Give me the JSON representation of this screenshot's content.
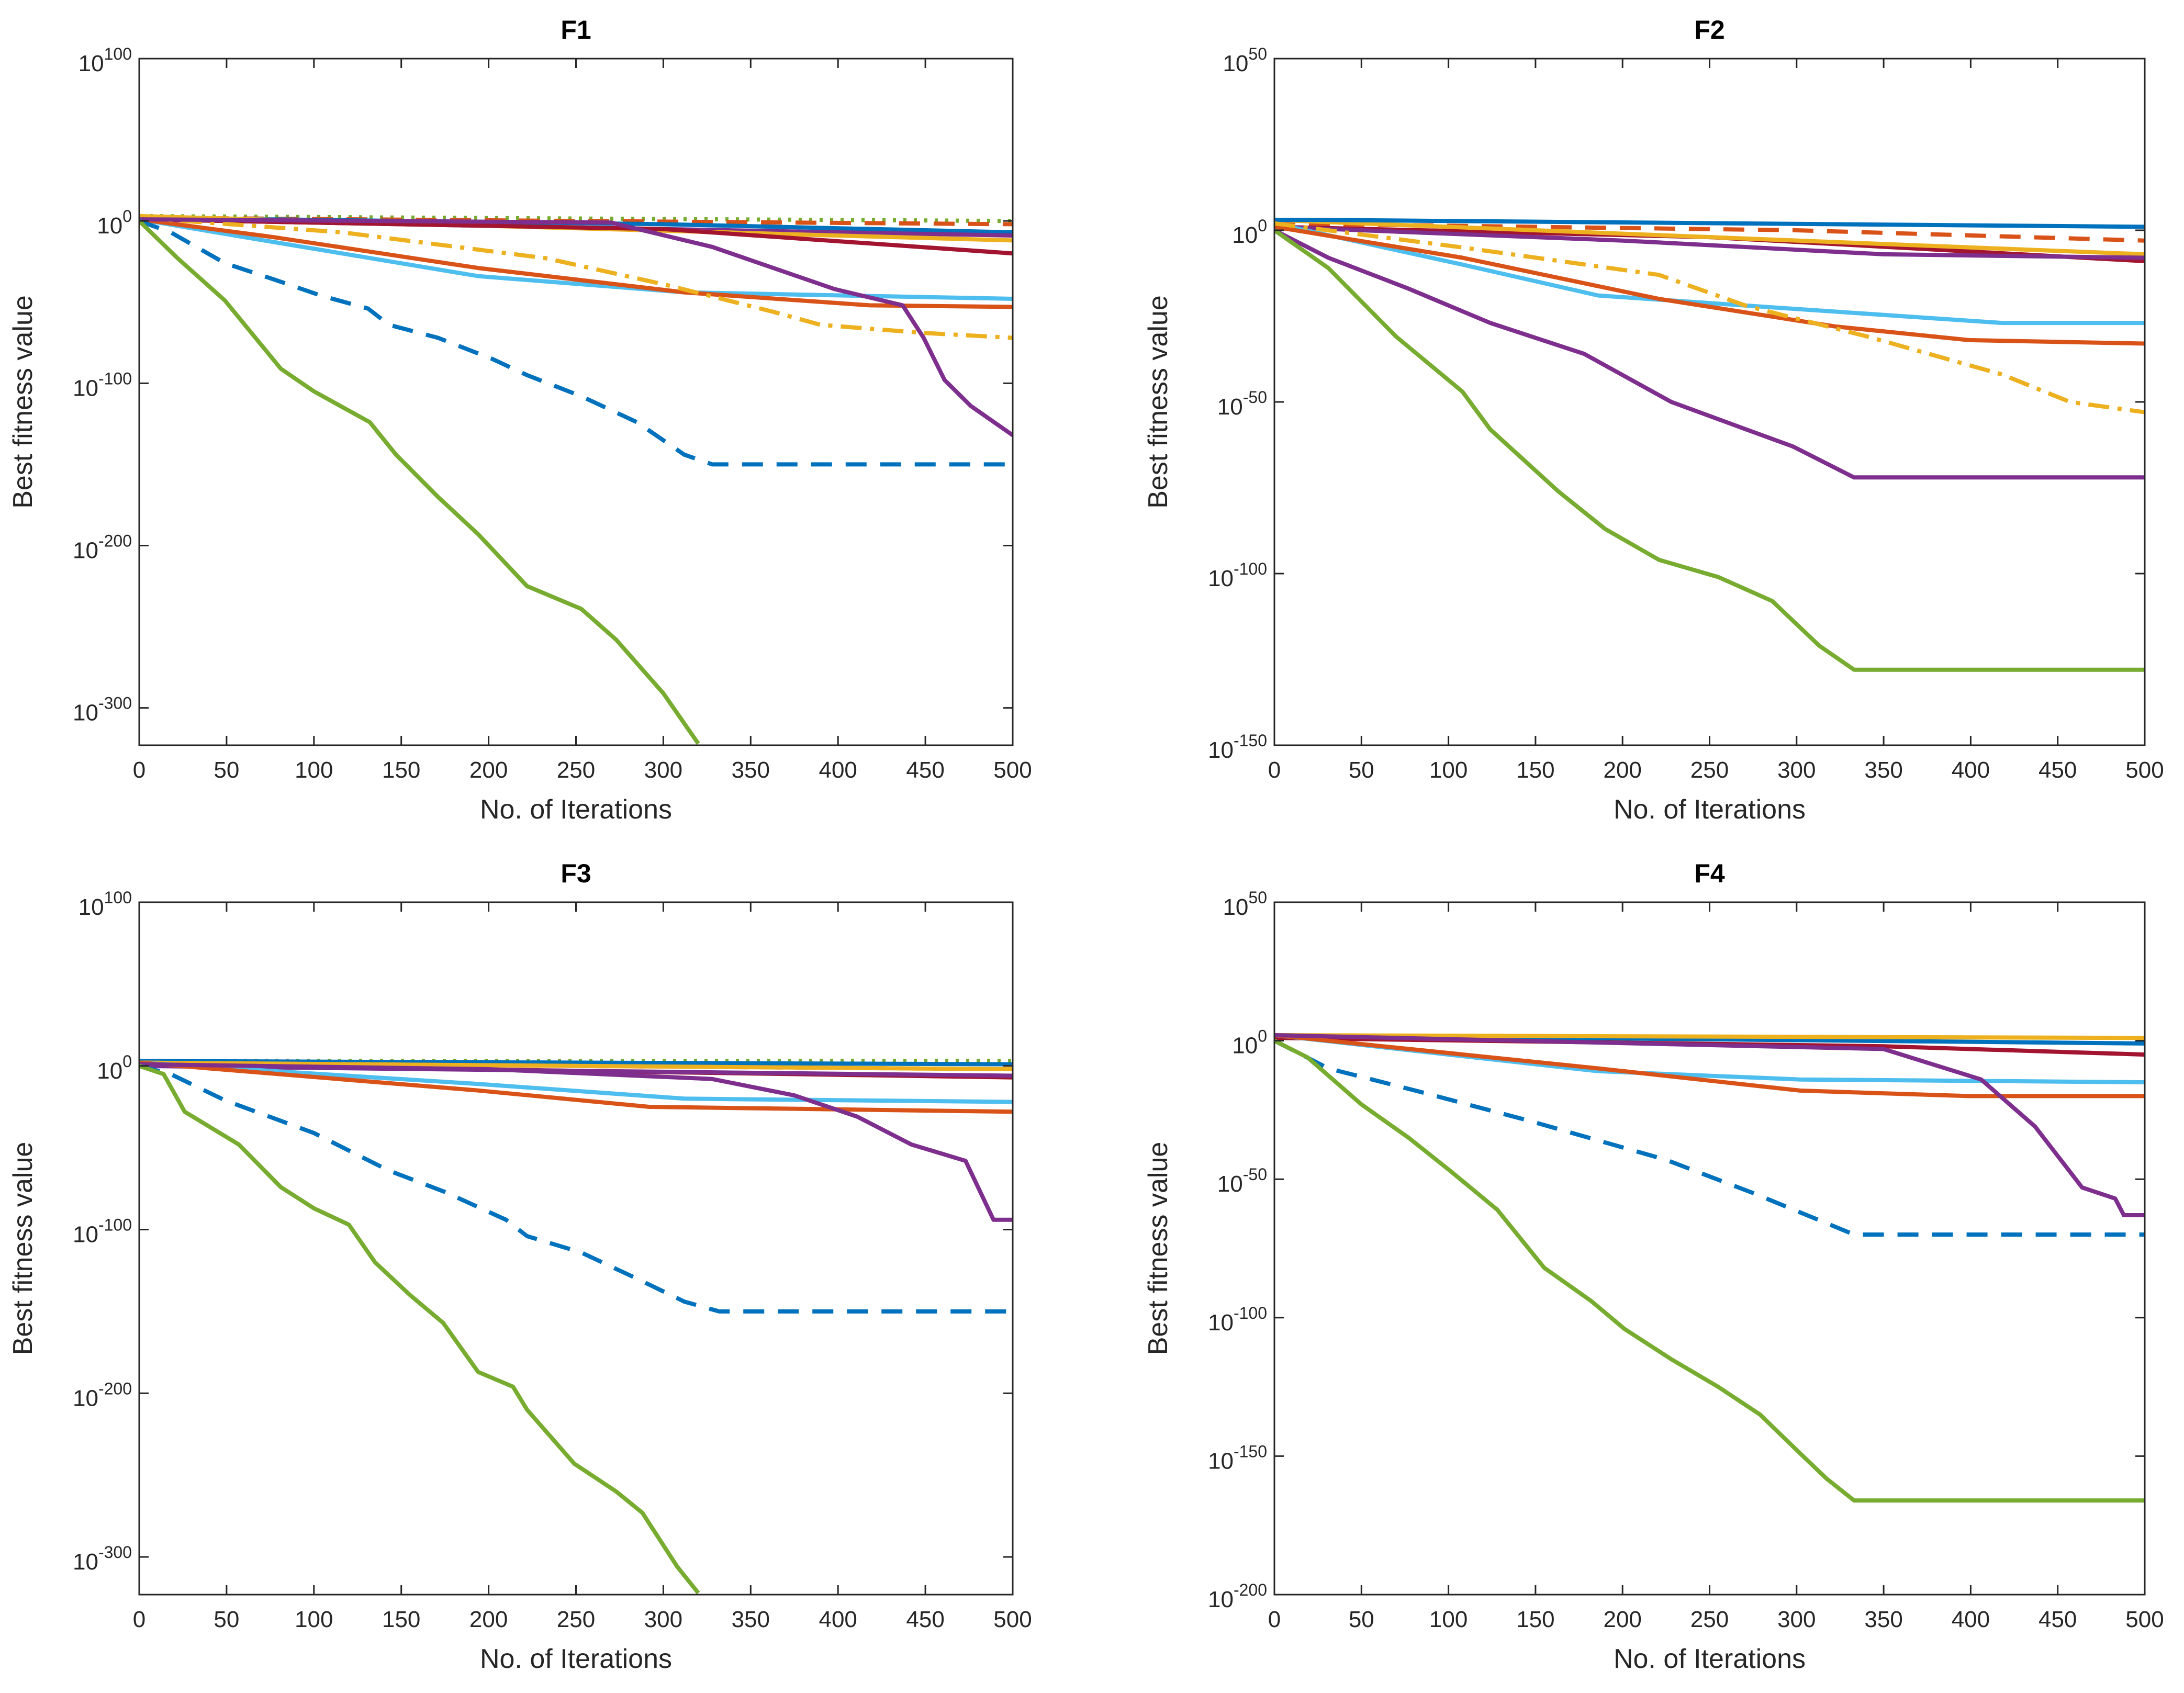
{
  "chart_data": [
    {
      "type": "line",
      "title": "F1",
      "xlabel": "No. of Iterations",
      "ylabel": "Best fitness value",
      "yscale": "log",
      "xlim": [
        0,
        500
      ],
      "ylim": [
        1e-323,
        1e+100
      ],
      "xticks": [
        0,
        50,
        100,
        150,
        200,
        250,
        300,
        350,
        400,
        450,
        500
      ],
      "xtick_labels": [
        "0",
        "50",
        "100",
        "150",
        "200",
        "250",
        "300",
        "350",
        "400",
        "450",
        "500"
      ],
      "yticks": [
        1e-300,
        1e-200,
        1e-100,
        1.0,
        1e+100
      ],
      "ytick_labels": [
        {
          "base": "10",
          "exp": "-300"
        },
        {
          "base": "10",
          "exp": "-200"
        },
        {
          "base": "10",
          "exp": "-100"
        },
        {
          "base": "10",
          "exp": "0"
        },
        {
          "base": "10",
          "exp": "100"
        }
      ],
      "grid": false,
      "legend": "none",
      "series": [
        {
          "color": "#77AC30",
          "style": "dotted",
          "x": [
            0,
            500
          ],
          "y": [
            1000.0,
            1.0
          ]
        },
        {
          "color": "#D95319",
          "style": "dashed",
          "x": [
            0,
            500
          ],
          "y": [
            100.0,
            0.01
          ]
        },
        {
          "color": "#0072BD",
          "style": "solid",
          "x": [
            0,
            300,
            500
          ],
          "y": [
            100.0,
            0.01,
            1e-07
          ]
        },
        {
          "color": "#7E2F8E",
          "style": "solid",
          "x": [
            0,
            500
          ],
          "y": [
            10.0,
            1e-09
          ]
        },
        {
          "color": "#EDB120",
          "style": "solid",
          "x": [
            0,
            500
          ],
          "y": [
            1000.0,
            1e-12
          ]
        },
        {
          "color": "#A2142F",
          "style": "solid",
          "x": [
            0,
            300,
            500
          ],
          "y": [
            10.0,
            1e-05,
            1e-20
          ]
        },
        {
          "color": "#4DBEEE",
          "style": "solid",
          "x": [
            0,
            77,
            194,
            312,
            500
          ],
          "y": [
            10.0,
            1e-13,
            1e-34,
            1e-44,
            1e-48
          ]
        },
        {
          "color": "#D95319",
          "style": "solid",
          "x": [
            0,
            77,
            194,
            312,
            418,
            500
          ],
          "y": [
            10.0,
            1e-10,
            1e-29,
            1e-44,
            1e-52,
            1e-53
          ]
        },
        {
          "color": "#EDB120",
          "style": "dashdot",
          "x": [
            0,
            116,
            233,
            300,
            363,
            390,
            449,
            500
          ],
          "y": [
            100.0,
            1e-07,
            1e-23,
            1e-39,
            1e-56,
            1e-64,
            1e-69,
            1e-72
          ]
        },
        {
          "color": "#7E2F8E",
          "style": "solid",
          "x": [
            0,
            270,
            328,
            363,
            398,
            437,
            449,
            461,
            476,
            500
          ],
          "y": [
            10.0,
            0.1,
            1e-16,
            1e-29,
            1e-42,
            1e-52,
            1e-72,
            1e-98,
            1e-114,
            1e-132
          ]
        },
        {
          "color": "#0072BD",
          "style": "dashed",
          "x": [
            0,
            18,
            49,
            77,
            104,
            131,
            143,
            171,
            202,
            222,
            253,
            285,
            312,
            328,
            500
          ],
          "y": [
            1.0,
            1e-07,
            1e-26,
            1e-36,
            1e-46,
            1e-54,
            1e-64,
            1e-72,
            1e-85,
            1e-95,
            1e-108,
            1e-124,
            1e-144,
            1e-150,
            1e-150
          ]
        },
        {
          "color": "#77AC30",
          "style": "solid",
          "x": [
            0,
            22,
            49,
            81,
            100,
            132,
            147,
            171,
            194,
            222,
            253,
            273,
            300,
            320
          ],
          "y": [
            1.0,
            1e-23,
            1e-49,
            1e-91,
            1e-105,
            1e-124,
            1e-144,
            1e-170,
            1e-193,
            1e-225,
            1e-239,
            1e-258,
            1e-291,
            1e-322
          ]
        }
      ]
    },
    {
      "type": "line",
      "title": "F2",
      "xlabel": "No. of Iterations",
      "ylabel": "Best fitness value",
      "yscale": "log",
      "xlim": [
        0,
        500
      ],
      "ylim": [
        1e-150,
        1e+50
      ],
      "xticks": [
        0,
        50,
        100,
        150,
        200,
        250,
        300,
        350,
        400,
        450,
        500
      ],
      "xtick_labels": [
        "0",
        "50",
        "100",
        "150",
        "200",
        "250",
        "300",
        "350",
        "400",
        "450",
        "500"
      ],
      "yticks": [
        1e-150,
        1e-100,
        1e-50,
        1.0,
        1e+50
      ],
      "ytick_labels": [
        {
          "base": "10",
          "exp": "-150"
        },
        {
          "base": "10",
          "exp": "-100"
        },
        {
          "base": "10",
          "exp": "-50"
        },
        {
          "base": "10",
          "exp": "0"
        },
        {
          "base": "10",
          "exp": "50"
        }
      ],
      "grid": false,
      "legend": "none",
      "series": [
        {
          "color": "#D95319",
          "style": "dashed",
          "x": [
            0,
            300,
            500
          ],
          "y": [
            100.0,
            1.0,
            0.001
          ]
        },
        {
          "color": "#A2142F",
          "style": "solid",
          "x": [
            0,
            250,
            500
          ],
          "y": [
            10.0,
            0.01,
            1e-09
          ]
        },
        {
          "color": "#EDB120",
          "style": "solid",
          "x": [
            0,
            500
          ],
          "y": [
            1000.0,
            1e-07
          ]
        },
        {
          "color": "#7E2F8E",
          "style": "solid",
          "x": [
            0,
            200,
            350,
            500
          ],
          "y": [
            10.0,
            0.001,
            1e-07,
            1e-08
          ]
        },
        {
          "color": "#0072BD",
          "style": "solid",
          "x": [
            0,
            30,
            500
          ],
          "y": [
            1000.0,
            1000.0,
            10.0
          ]
        },
        {
          "color": "#4DBEEE",
          "style": "solid",
          "x": [
            0,
            108,
            186,
            302,
            418,
            500
          ],
          "y": [
            100.0,
            1e-10,
            1e-19,
            1e-23,
            1e-27,
            1e-27
          ]
        },
        {
          "color": "#D95319",
          "style": "solid",
          "x": [
            0,
            108,
            221,
            322,
            399,
            500
          ],
          "y": [
            10.0,
            1e-08,
            1e-20,
            1e-28,
            1e-32,
            1e-33
          ]
        },
        {
          "color": "#EDB120",
          "style": "dashdot",
          "x": [
            0,
            108,
            221,
            271,
            341,
            418,
            457,
            500
          ],
          "y": [
            100.0,
            1e-05,
            1e-13,
            1e-22,
            1e-31,
            1e-42,
            1e-50,
            1e-53
          ]
        },
        {
          "color": "#7E2F8E",
          "style": "solid",
          "x": [
            0,
            31,
            77,
            124,
            178,
            228,
            271,
            298,
            333,
            500
          ],
          "y": [
            1.0,
            1e-08,
            1e-17,
            1e-27,
            1e-36,
            1e-50,
            1e-58,
            1e-63,
            1e-72,
            1e-72
          ]
        },
        {
          "color": "#77AC30",
          "style": "solid",
          "x": [
            0,
            31,
            70,
            108,
            124,
            163,
            190,
            221,
            255,
            286,
            313,
            333,
            500
          ],
          "y": [
            1.0,
            1e-11,
            1e-31,
            1e-47,
            1e-58,
            1e-76,
            1e-87,
            1e-96,
            1e-101,
            1e-108,
            1e-121,
            1e-128,
            1e-128
          ]
        }
      ]
    },
    {
      "type": "line",
      "title": "F3",
      "xlabel": "No. of Iterations",
      "ylabel": "Best fitness value",
      "yscale": "log",
      "xlim": [
        0,
        500
      ],
      "ylim": [
        1e-323,
        1e+100
      ],
      "xticks": [
        0,
        50,
        100,
        150,
        200,
        250,
        300,
        350,
        400,
        450,
        500
      ],
      "xtick_labels": [
        "0",
        "50",
        "100",
        "150",
        "200",
        "250",
        "300",
        "350",
        "400",
        "450",
        "500"
      ],
      "yticks": [
        1e-300,
        1e-200,
        1e-100,
        1.0,
        1e+100
      ],
      "ytick_labels": [
        {
          "base": "10",
          "exp": "-300"
        },
        {
          "base": "10",
          "exp": "-200"
        },
        {
          "base": "10",
          "exp": "-100"
        },
        {
          "base": "10",
          "exp": "0"
        },
        {
          "base": "10",
          "exp": "100"
        }
      ],
      "grid": false,
      "legend": "none",
      "series": [
        {
          "color": "#77AC30",
          "style": "dotted",
          "x": [
            0,
            500
          ],
          "y": [
            1000.0,
            1000.0
          ]
        },
        {
          "color": "#0072BD",
          "style": "solid",
          "x": [
            0,
            500
          ],
          "y": [
            1000.0,
            10.0
          ]
        },
        {
          "color": "#D95319",
          "style": "dashed",
          "x": [
            0,
            500
          ],
          "y": [
            100.0,
            0.01
          ]
        },
        {
          "color": "#EDB120",
          "style": "solid",
          "x": [
            0,
            500
          ],
          "y": [
            100.0,
            0.01
          ]
        },
        {
          "color": "#A2142F",
          "style": "solid",
          "x": [
            0,
            500
          ],
          "y": [
            10.0,
            1e-07
          ]
        },
        {
          "color": "#7E2F8E",
          "style": "solid",
          "x": [
            0,
            500
          ],
          "y": [
            1.0,
            1e-06
          ]
        },
        {
          "color": "#4DBEEE",
          "style": "solid",
          "x": [
            0,
            194,
            312,
            500
          ],
          "y": [
            100.0,
            1e-11,
            1e-20,
            1e-22
          ]
        },
        {
          "color": "#D95319",
          "style": "solid",
          "x": [
            0,
            194,
            292,
            500
          ],
          "y": [
            100.0,
            1e-15,
            1e-25,
            1e-28
          ]
        },
        {
          "color": "#7E2F8E",
          "style": "solid",
          "x": [
            0,
            200,
            328,
            375,
            411,
            442,
            473,
            489,
            500
          ],
          "y": [
            10.0,
            0.01,
            1e-08,
            1e-18,
            1e-31,
            1e-48,
            1e-58,
            1e-94,
            1e-94
          ]
        },
        {
          "color": "#0072BD",
          "style": "dashed",
          "x": [
            0,
            18,
            49,
            100,
            143,
            175,
            210,
            222,
            253,
            285,
            312,
            332,
            500
          ],
          "y": [
            1.0,
            1e-05,
            1e-21,
            1e-41,
            1e-64,
            1e-77,
            1e-94,
            1e-104,
            1e-114,
            1e-130,
            1e-144,
            1e-150,
            1e-150
          ]
        },
        {
          "color": "#77AC30",
          "style": "solid",
          "x": [
            0,
            14,
            26,
            57,
            81,
            100,
            120,
            135,
            155,
            174,
            194,
            214,
            222,
            249,
            273,
            288,
            308,
            320
          ],
          "y": [
            1.0,
            1e-05,
            1e-28,
            1e-48,
            1e-74,
            1e-87,
            1e-97,
            1e-120,
            1e-140,
            1e-157,
            1e-187,
            1e-196,
            1e-210,
            1e-243,
            1e-260,
            1e-273,
            1e-306,
            1e-322
          ]
        }
      ]
    },
    {
      "type": "line",
      "title": "F4",
      "xlabel": "No. of Iterations",
      "ylabel": "Best fitness value",
      "yscale": "log",
      "xlim": [
        0,
        500
      ],
      "ylim": [
        1e-200,
        1e+50
      ],
      "xticks": [
        0,
        50,
        100,
        150,
        200,
        250,
        300,
        350,
        400,
        450,
        500
      ],
      "xtick_labels": [
        "0",
        "50",
        "100",
        "150",
        "200",
        "250",
        "300",
        "350",
        "400",
        "450",
        "500"
      ],
      "yticks": [
        1e-200,
        1e-150,
        1e-100,
        1e-50,
        1.0,
        1e+50
      ],
      "ytick_labels": [
        {
          "base": "10",
          "exp": "-200"
        },
        {
          "base": "10",
          "exp": "-150"
        },
        {
          "base": "10",
          "exp": "-100"
        },
        {
          "base": "10",
          "exp": "-50"
        },
        {
          "base": "10",
          "exp": "0"
        },
        {
          "base": "10",
          "exp": "50"
        }
      ],
      "grid": false,
      "legend": "none",
      "series": [
        {
          "color": "#0072BD",
          "style": "solid",
          "x": [
            0,
            500
          ],
          "y": [
            100.0,
            0.1
          ]
        },
        {
          "color": "#A2142F",
          "style": "solid",
          "x": [
            0,
            350,
            500
          ],
          "y": [
            10.0,
            0.01,
            1e-05
          ]
        },
        {
          "color": "#EDB120",
          "style": "solid",
          "x": [
            0,
            500
          ],
          "y": [
            100.0,
            10.0
          ]
        },
        {
          "color": "#4DBEEE",
          "style": "solid",
          "x": [
            0,
            186,
            302,
            500
          ],
          "y": [
            100.0,
            1e-11,
            1e-14,
            1e-15
          ]
        },
        {
          "color": "#D95319",
          "style": "solid",
          "x": [
            0,
            186,
            302,
            399,
            500
          ],
          "y": [
            100.0,
            1e-10,
            1e-18,
            1e-20,
            1e-20
          ]
        },
        {
          "color": "#7E2F8E",
          "style": "solid",
          "x": [
            0,
            350,
            406,
            437,
            464,
            483,
            488,
            500
          ],
          "y": [
            100.0,
            0.001,
            1e-14,
            1e-31,
            1e-53,
            1e-57,
            1e-63,
            1e-63
          ]
        },
        {
          "color": "#0072BD",
          "style": "dashed",
          "x": [
            0,
            31,
            81,
            147,
            225,
            275,
            333,
            500
          ],
          "y": [
            1.0,
            1e-10,
            1e-18,
            1e-29,
            1e-43,
            1e-55,
            1e-70,
            1e-70
          ]
        },
        {
          "color": "#77AC30",
          "style": "solid",
          "x": [
            0,
            19,
            50,
            77,
            101,
            128,
            155,
            182,
            201,
            228,
            255,
            279,
            302,
            317,
            333,
            500
          ],
          "y": [
            1.0,
            1e-06,
            1e-23,
            1e-35,
            1e-47,
            1e-61,
            1e-82,
            1e-94,
            1e-104,
            1e-115,
            1e-125,
            1e-135,
            1e-149,
            1e-158,
            1e-166,
            1e-166
          ]
        }
      ]
    }
  ]
}
